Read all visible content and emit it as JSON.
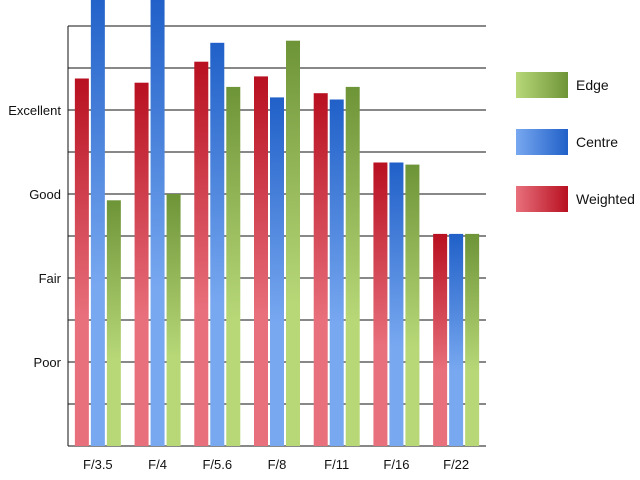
{
  "chart_data": {
    "type": "bar",
    "categories": [
      "F/3.5",
      "F/4",
      "F/5.6",
      "F/8",
      "F/11",
      "F/16",
      "F/22"
    ],
    "series": [
      {
        "name": "Weighted",
        "values": [
          8.75,
          8.65,
          9.15,
          8.8,
          8.4,
          6.75,
          5.05
        ],
        "colors": {
          "light": "#e8707c",
          "dark": "#b81020"
        }
      },
      {
        "name": "Centre",
        "values": [
          10.85,
          10.65,
          9.6,
          8.3,
          8.25,
          6.75,
          5.05
        ],
        "colors": {
          "light": "#78a8f0",
          "dark": "#2060c8"
        }
      },
      {
        "name": "Edge",
        "values": [
          5.85,
          6.0,
          8.55,
          9.65,
          8.55,
          6.7,
          5.05
        ],
        "colors": {
          "light": "#b8d878",
          "dark": "#6e9438"
        }
      }
    ],
    "yticks": [
      {
        "value": 2,
        "label": "Poor"
      },
      {
        "value": 4,
        "label": "Fair"
      },
      {
        "value": 6,
        "label": "Good"
      },
      {
        "value": 8,
        "label": "Excellent"
      }
    ],
    "ylim": [
      0,
      10
    ],
    "grid": true,
    "legend": {
      "position": "right",
      "order": [
        "Edge",
        "Centre",
        "Weighted"
      ]
    }
  }
}
